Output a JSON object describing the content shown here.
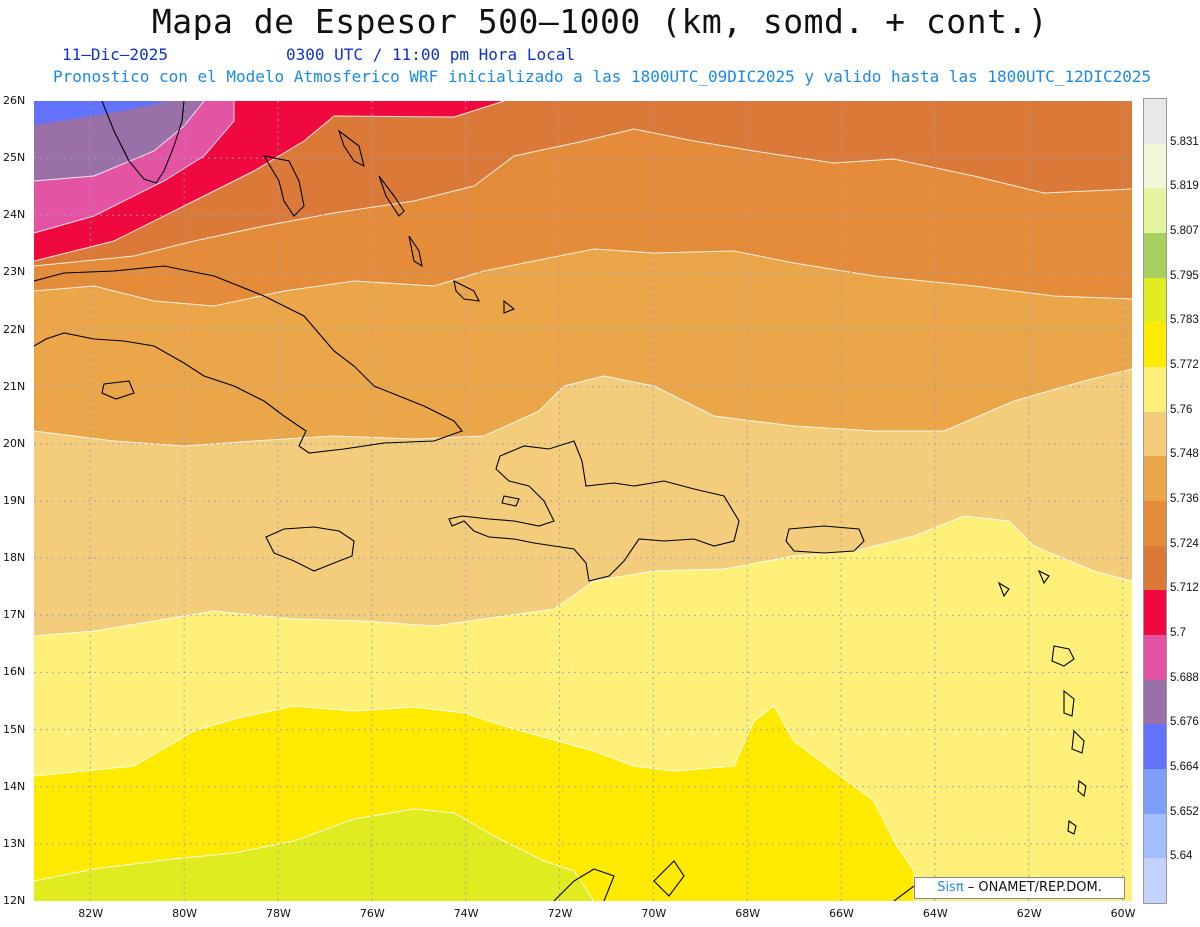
{
  "title": "Mapa de Espesor 500–1000 (km, somd. + cont.)",
  "date_label": "11–Dic–2025",
  "time_label": "0300 UTC / 11:00 pm Hora Local",
  "model_label": "Pronostico con el Modelo Atmosferico WRF inicializado a las 1800UTC_09DIC2025 y valido hasta las  1800UTC_12DIC2025",
  "credit": {
    "brand": "Sisπ",
    "text": " – ONAMET/REP.DOM."
  },
  "map": {
    "lat_labels": [
      "26N",
      "25N",
      "24N",
      "23N",
      "22N",
      "21N",
      "20N",
      "19N",
      "18N",
      "17N",
      "16N",
      "15N",
      "14N",
      "13N",
      "12N"
    ],
    "lon_labels": [
      "82W",
      "80W",
      "78W",
      "76W",
      "74W",
      "72W",
      "70W",
      "68W",
      "66W",
      "64W",
      "62W",
      "60W"
    ],
    "lat_range": [
      12,
      26
    ],
    "lon_range": [
      -83.2,
      -59.8
    ]
  },
  "legend": {
    "labels": [
      "5.831",
      "5.819",
      "5.807",
      "5.795",
      "5.783",
      "5.772",
      "5.76",
      "5.748",
      "5.736",
      "5.724",
      "5.712",
      "5.7",
      "5.688",
      "5.676",
      "5.664",
      "5.652",
      "5.64"
    ],
    "colors": [
      "#e8e8e8",
      "#f2f6d8",
      "#e4f4a0",
      "#a8d060",
      "#e0ec20",
      "#ffea00",
      "#fff07a",
      "#f3cd7b",
      "#eca64a",
      "#e48c3a",
      "#db7a38",
      "#f0093e",
      "#e454a4",
      "#9a70a8",
      "#6272fa",
      "#7e9ef8",
      "#a2beff",
      "#c4d2ff"
    ]
  }
}
